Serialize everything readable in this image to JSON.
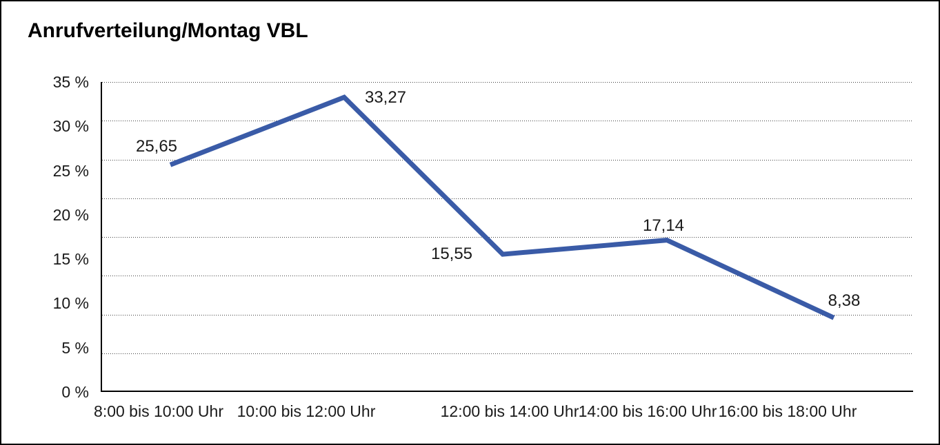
{
  "chart_data": {
    "type": "line",
    "title": "Anrufverteilung/Montag VBL",
    "categories": [
      "8:00 bis 10:00 Uhr",
      "10:00 bis 12:00 Uhr",
      "12:00 bis 14:00 Uhr",
      "14:00 bis 16:00 Uhr",
      "16:00 bis 18:00 Uhr"
    ],
    "series": [
      {
        "name": "Anrufverteilung Montag VBL",
        "values": [
          25.65,
          33.27,
          15.55,
          17.14,
          8.38
        ]
      }
    ],
    "point_labels": [
      "25,65",
      "33,27",
      "15,55",
      "17,14",
      "8,38"
    ],
    "y_ticks": [
      "35 %",
      "30 %",
      "25 %",
      "20 %",
      "15 %",
      "10 %",
      "5 %",
      "0 %"
    ],
    "y_tick_values": [
      35,
      30,
      25,
      20,
      15,
      10,
      5,
      0
    ],
    "ylim": [
      0,
      35
    ],
    "xlabel": "",
    "ylabel": "",
    "grid": "dotted-horizontal",
    "grid_divisions": 8,
    "legend_position": "none",
    "line_color": "#3A5BA7",
    "axis_color": "#000000",
    "text_color": "#1a1a1a",
    "background_color": "#ffffff"
  }
}
